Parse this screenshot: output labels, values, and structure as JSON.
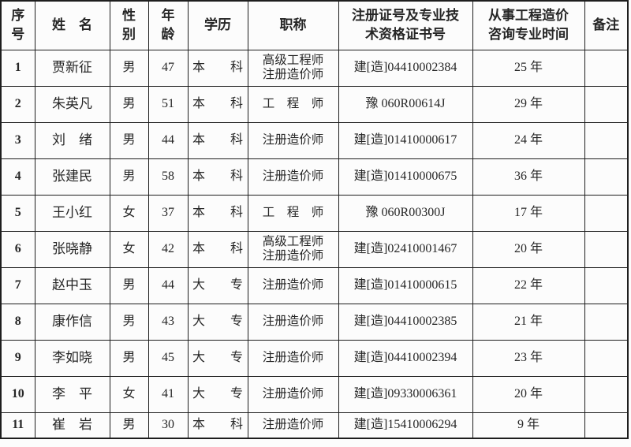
{
  "table": {
    "border_color": "#1e1e1e",
    "text_color": "#262626",
    "background_color": "#fcfcfc",
    "columns": [
      {
        "key": "no",
        "label": "序\n号"
      },
      {
        "key": "name",
        "label": "姓　名"
      },
      {
        "key": "gender",
        "label": "性\n别"
      },
      {
        "key": "age",
        "label": "年\n龄"
      },
      {
        "key": "edu",
        "label": "学历"
      },
      {
        "key": "title",
        "label": "职称"
      },
      {
        "key": "cert",
        "label": "注册证号及专业技\n术资格证书号"
      },
      {
        "key": "years",
        "label": "从事工程造价\n咨询专业时间"
      },
      {
        "key": "note",
        "label": "备注"
      }
    ],
    "rows": [
      {
        "no": "1",
        "name": "贾新征",
        "gender": "男",
        "age": "47",
        "edu": "本　　科",
        "title": "高级工程师\n注册造价师",
        "cert": "建[造]04410002384",
        "years": "25 年",
        "note": ""
      },
      {
        "no": "2",
        "name": "朱英凡",
        "gender": "男",
        "age": "51",
        "edu": "本　　科",
        "title": "工　程　师",
        "cert": "豫 060R00614J",
        "years": "29 年",
        "note": ""
      },
      {
        "no": "3",
        "name": "刘　绪",
        "gender": "男",
        "age": "44",
        "edu": "本　　科",
        "title": "注册造价师",
        "cert": "建[造]01410000617",
        "years": "24 年",
        "note": ""
      },
      {
        "no": "4",
        "name": "张建民",
        "gender": "男",
        "age": "58",
        "edu": "本　　科",
        "title": "注册造价师",
        "cert": "建[造]01410000675",
        "years": "36 年",
        "note": ""
      },
      {
        "no": "5",
        "name": "王小红",
        "gender": "女",
        "age": "37",
        "edu": "本　　科",
        "title": "工　程　师",
        "cert": "豫 060R00300J",
        "years": "17 年",
        "note": ""
      },
      {
        "no": "6",
        "name": "张晓静",
        "gender": "女",
        "age": "42",
        "edu": "本　　科",
        "title": "高级工程师\n注册造价师",
        "cert": "建[造]02410001467",
        "years": "20 年",
        "note": ""
      },
      {
        "no": "7",
        "name": "赵中玉",
        "gender": "男",
        "age": "44",
        "edu": "大　　专",
        "title": "注册造价师",
        "cert": "建[造]01410000615",
        "years": "22 年",
        "note": ""
      },
      {
        "no": "8",
        "name": "康作信",
        "gender": "男",
        "age": "43",
        "edu": "大　　专",
        "title": "注册造价师",
        "cert": "建[造]04410002385",
        "years": "21 年",
        "note": ""
      },
      {
        "no": "9",
        "name": "李如晓",
        "gender": "男",
        "age": "45",
        "edu": "大　　专",
        "title": "注册造价师",
        "cert": "建[造]04410002394",
        "years": "23 年",
        "note": ""
      },
      {
        "no": "10",
        "name": "李　平",
        "gender": "女",
        "age": "41",
        "edu": "大　　专",
        "title": "注册造价师",
        "cert": "建[造]09330006361",
        "years": "20 年",
        "note": ""
      },
      {
        "no": "11",
        "name": "崔　岩",
        "gender": "男",
        "age": "30",
        "edu": "本　　科",
        "title": "注册造价师",
        "cert": "建[造]15410006294",
        "years": "9 年",
        "note": ""
      }
    ]
  }
}
